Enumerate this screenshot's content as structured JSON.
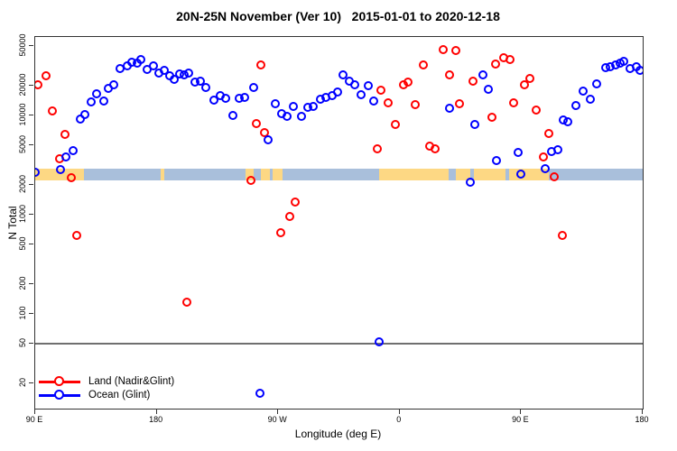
{
  "title": "20N-25N November (Ver 10)   2015-01-01 to 2020-12-18",
  "colors": {
    "land": "#ff0000",
    "ocean": "#0000ff",
    "band_ocean": "#a9bfdb",
    "band_land": "#fdd884",
    "axis": "#333333",
    "refline": "#6f6f6f"
  },
  "legend": {
    "entries": [
      {
        "label": "Land (Nadir&Glint)",
        "color": "#ff0000"
      },
      {
        "label": "Ocean (Glint)",
        "color": "#0000ff"
      }
    ]
  },
  "map_band": {
    "description": "20N-25N world coastline strip drawn across plot",
    "value_range": [
      2190,
      2930
    ],
    "land_segments_deg": [
      [
        90,
        126
      ],
      [
        183,
        185.5
      ],
      [
        246,
        252
      ],
      [
        257,
        264
      ],
      [
        266,
        273
      ],
      [
        345,
        396
      ],
      [
        401.5,
        412.5
      ],
      [
        415,
        438.5
      ],
      [
        441,
        470.5
      ]
    ]
  },
  "chart_data": {
    "type": "scatter",
    "title": "20N-25N November (Ver 10)   2015-01-01 to 2020-12-18",
    "xlabel": "Longitude (deg E)",
    "ylabel": "N Total",
    "x_axis": {
      "lim": [
        90,
        540
      ],
      "ticks": [
        {
          "pos": 90,
          "label": "90 E"
        },
        {
          "pos": 180,
          "label": "180"
        },
        {
          "pos": 270,
          "label": "90 W"
        },
        {
          "pos": 360,
          "label": "0"
        },
        {
          "pos": 450,
          "label": "90 E"
        },
        {
          "pos": 540,
          "label": "180"
        }
      ]
    },
    "y_axis": {
      "scale": "log",
      "lim": [
        11.1,
        61600
      ],
      "ticks": [
        20,
        50,
        100,
        200,
        500,
        1000,
        2000,
        5000,
        10000,
        20000,
        50000
      ]
    },
    "reference_hline": 50,
    "grid": false,
    "legend_position": "bottom-left",
    "series": [
      {
        "name": "Land (Nadir&Glint)",
        "color": "#ff0000",
        "points": [
          [
            92,
            20300
          ],
          [
            98,
            24900
          ],
          [
            102.7,
            11000
          ],
          [
            112.3,
            6470
          ],
          [
            107.8,
            3670
          ],
          [
            117,
            2370
          ],
          [
            121,
            620
          ],
          [
            202.5,
            130
          ],
          [
            249.5,
            2230
          ],
          [
            254,
            8260
          ],
          [
            257,
            32200
          ],
          [
            260,
            6700
          ],
          [
            272,
            660
          ],
          [
            278.5,
            960
          ],
          [
            282.5,
            1330
          ],
          [
            343.7,
            4600
          ],
          [
            346,
            17800
          ],
          [
            351.5,
            13500
          ],
          [
            357,
            8140
          ],
          [
            362.5,
            20500
          ],
          [
            366,
            21600
          ],
          [
            371.5,
            12800
          ],
          [
            377.5,
            32400
          ],
          [
            382,
            4930
          ],
          [
            386,
            4600
          ],
          [
            392,
            46000
          ],
          [
            397,
            25800
          ],
          [
            401.5,
            45000
          ],
          [
            404.5,
            13100
          ],
          [
            414.5,
            22100
          ],
          [
            428.3,
            9510
          ],
          [
            431.2,
            32900
          ],
          [
            437,
            38300
          ],
          [
            441.8,
            36500
          ],
          [
            444.6,
            13400
          ],
          [
            452.7,
            20500
          ],
          [
            456.5,
            23500
          ],
          [
            461,
            11400
          ],
          [
            466.5,
            3780
          ],
          [
            470.5,
            6560
          ],
          [
            474.6,
            2400
          ],
          [
            480.4,
            620
          ]
        ]
      },
      {
        "name": "Ocean (Glint)",
        "color": "#0000ff",
        "points": [
          [
            90,
            2670
          ],
          [
            108.5,
            2860
          ],
          [
            112.9,
            3830
          ],
          [
            117.8,
            4410
          ],
          [
            123.5,
            9230
          ],
          [
            127,
            10200
          ],
          [
            131.2,
            13700
          ],
          [
            135.6,
            16600
          ],
          [
            140.7,
            14000
          ],
          [
            144,
            18800
          ],
          [
            148.3,
            20200
          ],
          [
            153,
            29600
          ],
          [
            157.9,
            31700
          ],
          [
            161.6,
            34500
          ],
          [
            165.6,
            33400
          ],
          [
            168.3,
            36500
          ],
          [
            172.8,
            29000
          ],
          [
            177.5,
            31300
          ],
          [
            181.7,
            26700
          ],
          [
            185.7,
            28200
          ],
          [
            189.5,
            25200
          ],
          [
            192.8,
            23200
          ],
          [
            196.8,
            26300
          ],
          [
            200.6,
            25800
          ],
          [
            203.5,
            26700
          ],
          [
            208.4,
            21600
          ],
          [
            212.4,
            21900
          ],
          [
            216.2,
            19100
          ],
          [
            222.4,
            14200
          ],
          [
            226.9,
            15800
          ],
          [
            231.4,
            14800
          ],
          [
            236.4,
            9900
          ],
          [
            240.9,
            14800
          ],
          [
            245.4,
            15300
          ],
          [
            251.5,
            19100
          ],
          [
            256.5,
            16
          ],
          [
            262.5,
            5640
          ],
          [
            267.8,
            13100
          ],
          [
            272.7,
            10300
          ],
          [
            276.5,
            9710
          ],
          [
            281.2,
            12400
          ],
          [
            287,
            9820
          ],
          [
            292,
            11970
          ],
          [
            296,
            12400
          ],
          [
            301,
            14500
          ],
          [
            305,
            15300
          ],
          [
            310,
            15800
          ],
          [
            314,
            17200
          ],
          [
            318,
            25800
          ],
          [
            322.6,
            22300
          ],
          [
            327,
            20500
          ],
          [
            331.5,
            16100
          ],
          [
            336.6,
            19800
          ],
          [
            341,
            14000
          ],
          [
            344.6,
            52
          ],
          [
            396.8,
            11800
          ],
          [
            412.3,
            2130
          ],
          [
            415.8,
            8140
          ],
          [
            421.5,
            25800
          ],
          [
            425.8,
            18300
          ],
          [
            432,
            3480
          ],
          [
            447.6,
            4200
          ],
          [
            449.8,
            2580
          ],
          [
            467.6,
            2900
          ],
          [
            472.6,
            4290
          ],
          [
            477.3,
            4510
          ],
          [
            481.2,
            9040
          ],
          [
            484.7,
            8670
          ],
          [
            490.3,
            12600
          ],
          [
            495.9,
            17600
          ],
          [
            501.4,
            14500
          ],
          [
            505.7,
            20600
          ],
          [
            512.9,
            30000
          ],
          [
            516.2,
            31100
          ],
          [
            520,
            32400
          ],
          [
            523,
            33400
          ],
          [
            526.2,
            34800
          ],
          [
            530.7,
            29600
          ],
          [
            535.6,
            30700
          ],
          [
            537.8,
            28600
          ]
        ]
      }
    ]
  }
}
